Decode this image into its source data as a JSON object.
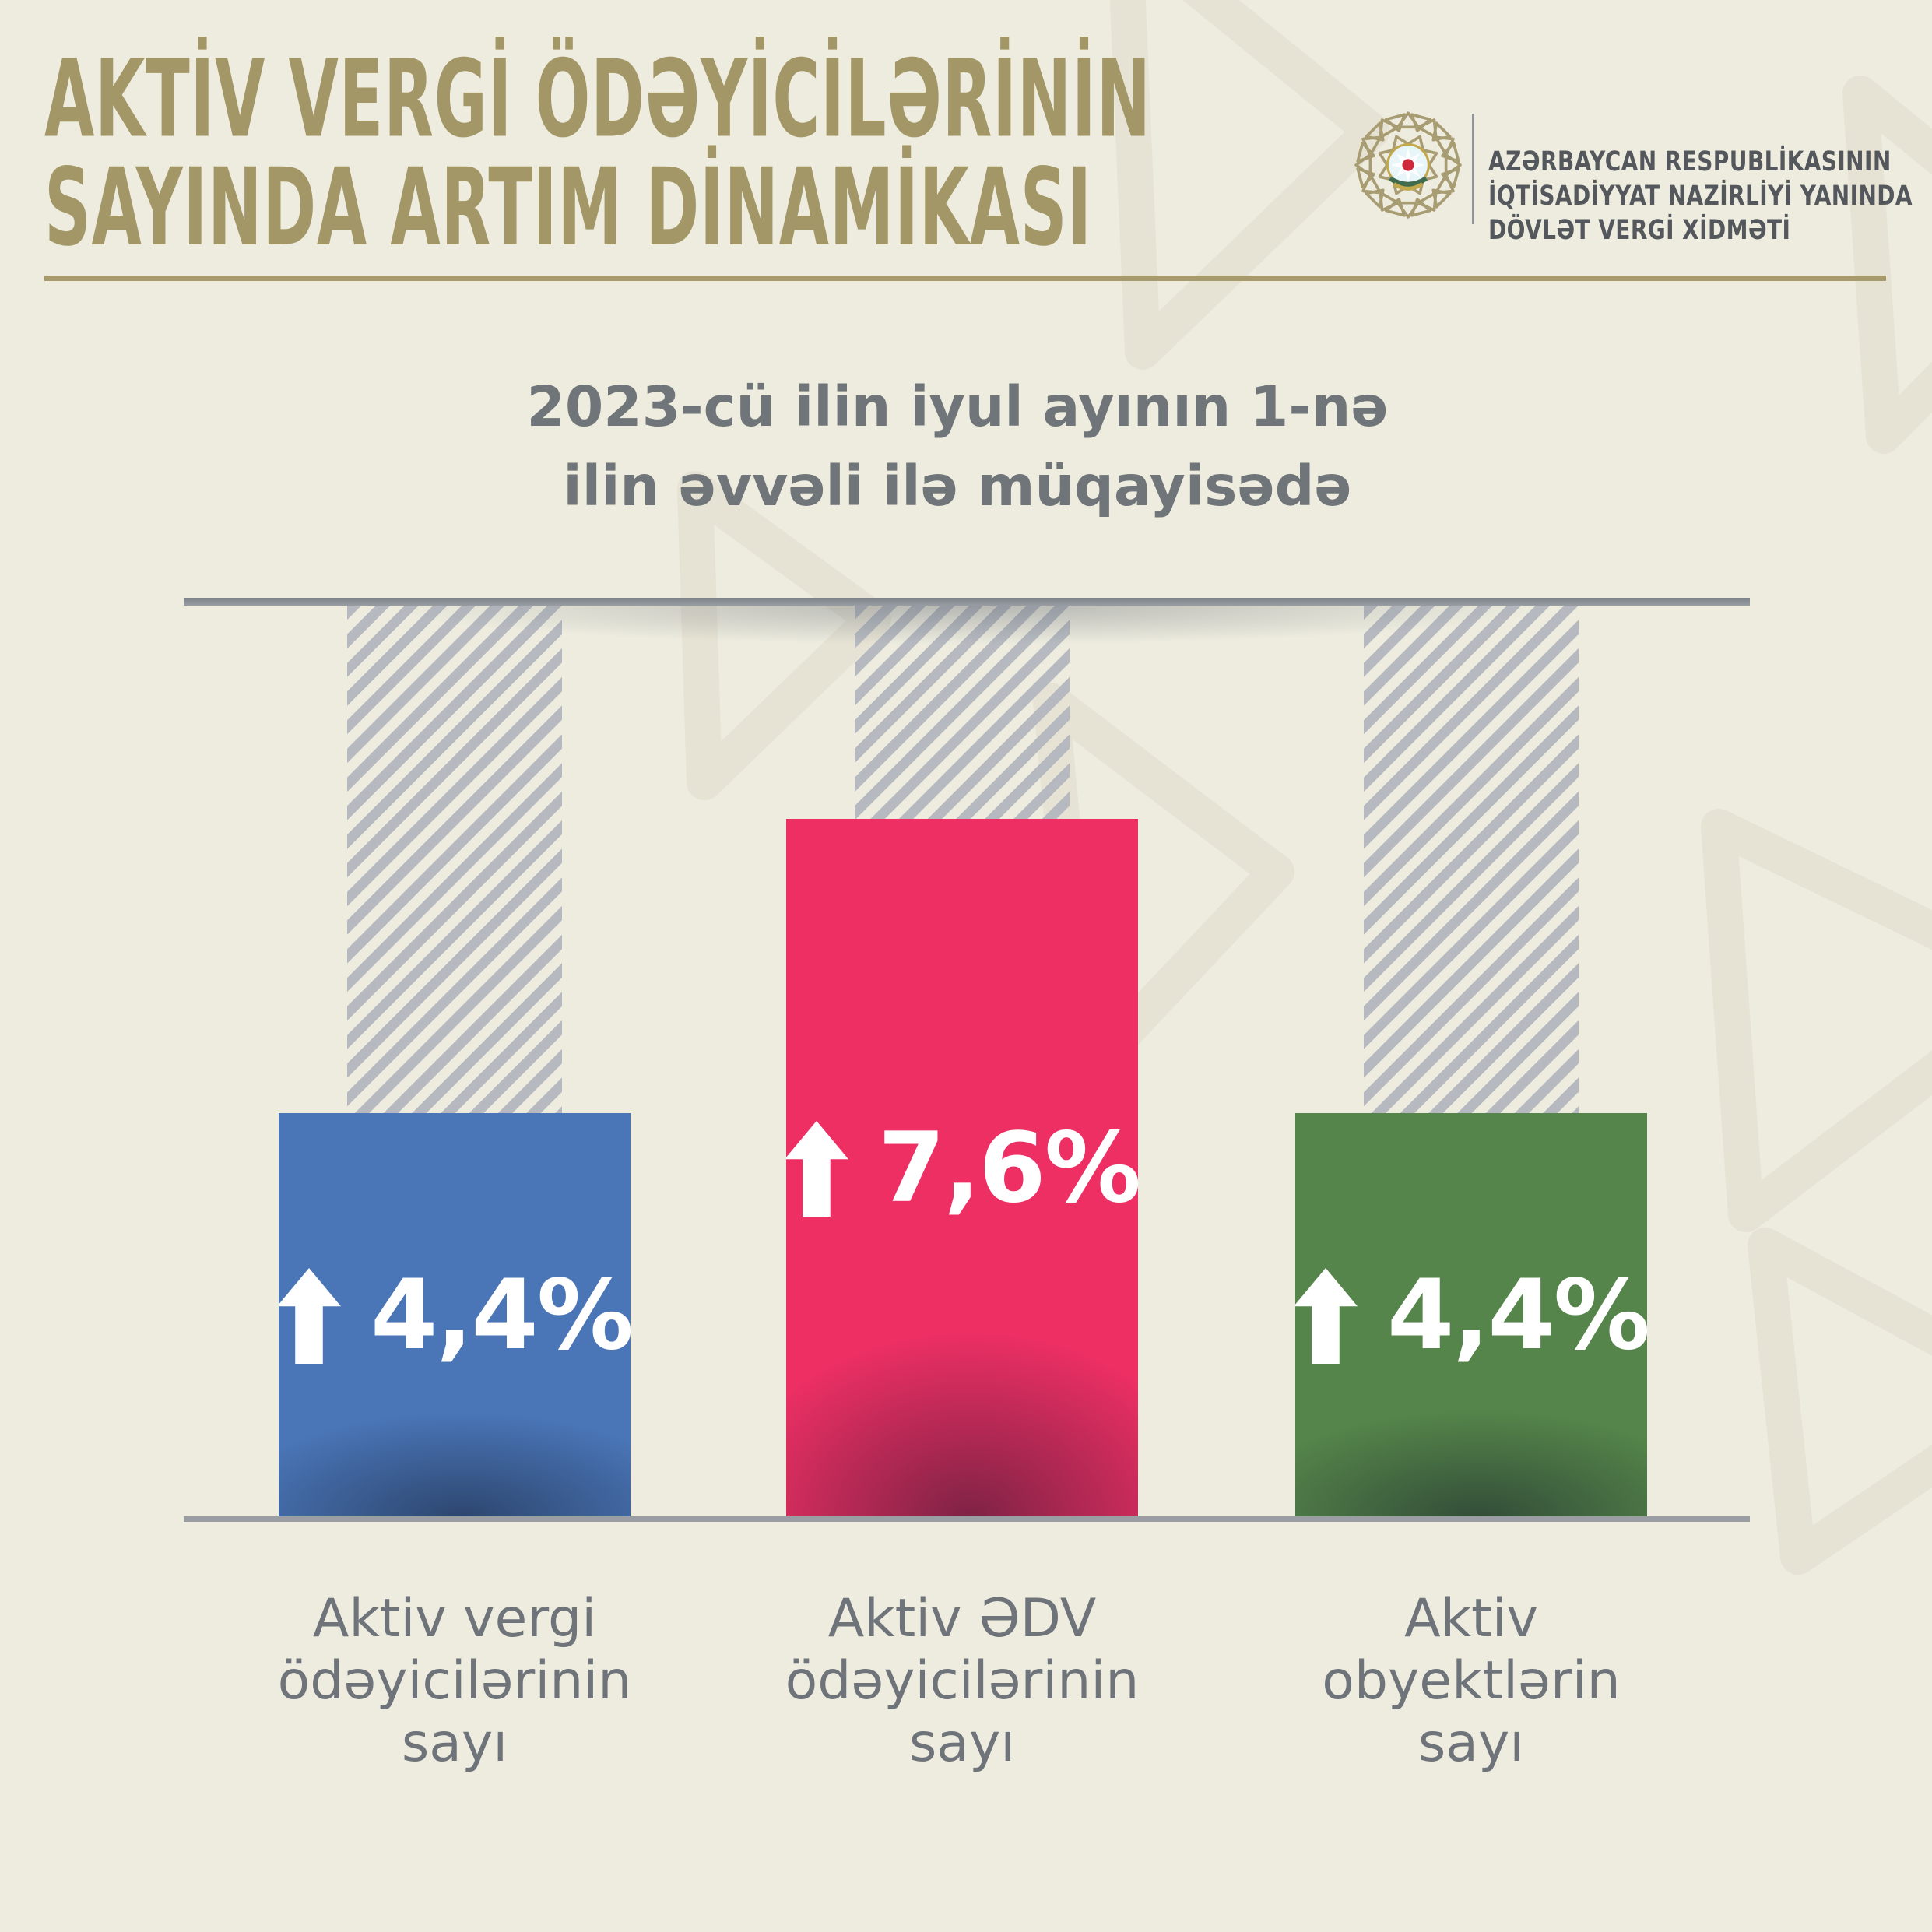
{
  "header": {
    "title_lines": [
      "AKTİV VERGİ ÖDƏYİCİLƏRİNİN",
      "SAYINDA ARTIM DİNAMİKASI"
    ],
    "logo": {
      "icon": "state-tax-service-emblem",
      "org_lines": [
        "AZƏRBAYCAN RESPUBLİKASININ",
        "İQTİSADİYYAT NAZİRLİYİ YANINDA",
        "DÖVLƏT VERGİ XİDMƏTİ"
      ]
    }
  },
  "subtitle_lines": [
    "2023-cü ilin iyul ayının 1-nə",
    "ilin əvvəli ilə müqayisədə"
  ],
  "chart_data": {
    "type": "bar",
    "title": "2023-cü ilin iyul ayının 1-nə ilin əvvəli ilə müqayisədə",
    "categories": [
      "Aktiv vergi ödəyicilərinin sayı",
      "Aktiv ƏDV ödəyicilərinin sayı",
      "Aktiv obyektlərin sayı"
    ],
    "category_label_lines": [
      [
        "Aktiv vergi",
        "ödəyicilərinin",
        "sayı"
      ],
      [
        "Aktiv ƏDV",
        "ödəyicilərinin",
        "sayı"
      ],
      [
        "Aktiv",
        "obyektlərin",
        "sayı"
      ]
    ],
    "values": [
      4.4,
      7.6,
      4.4
    ],
    "value_labels": [
      "4,4%",
      "7,6%",
      "4,4%"
    ],
    "value_direction": [
      "up",
      "up",
      "up"
    ],
    "series_colors": [
      "#4a76b8",
      "#ed2f64",
      "#55854a"
    ],
    "unit": "%",
    "ylim": [
      0,
      9.9
    ],
    "grid": false,
    "legend": false,
    "orientation": "vertical"
  },
  "style": {
    "background": "#edecdf",
    "ornament": "#e6e3d4",
    "title_gold": "#a39767",
    "divider_gold": "#a79b6e",
    "subtitle_gray": "#70757a",
    "category_gray": "#6f747a",
    "org_text_gray": "#54585d",
    "top_line_gray": "#8d9196",
    "baseline_gray": "#9a9ea2",
    "hatch_gray": "#b6bac0",
    "logo_gold": "#a89c72",
    "value_label_white": "#ffffff"
  }
}
